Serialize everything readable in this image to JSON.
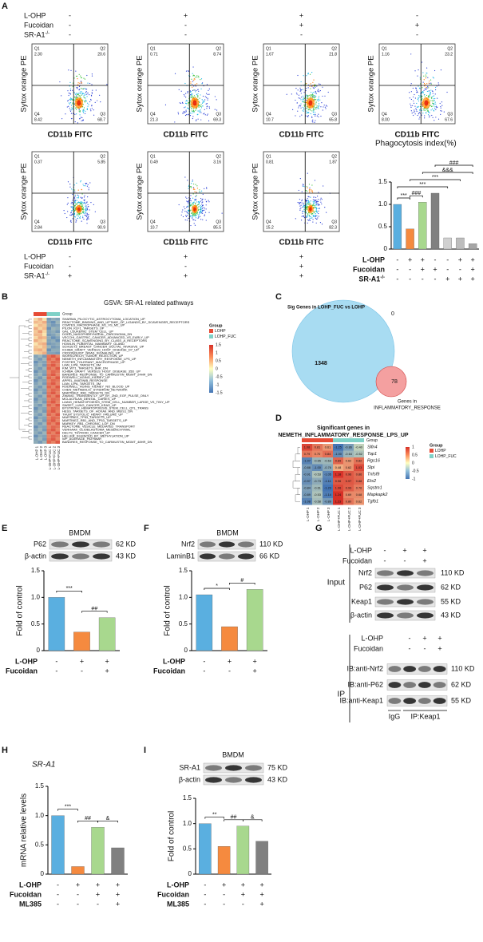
{
  "panel_labels": [
    "A",
    "B",
    "C",
    "D",
    "E",
    "F",
    "G",
    "H",
    "I"
  ],
  "flow": {
    "y_label": "Sytox orange PE",
    "x_label": "CD11b FITC",
    "quadrants": [
      "Q1",
      "Q2",
      "Q3",
      "Q4"
    ],
    "plots": [
      [
        "2.30",
        "20.6",
        "68.7",
        "8.42"
      ],
      [
        "0.71",
        "8.74",
        "69.3",
        "21.3"
      ],
      [
        "1.67",
        "21.8",
        "65.8",
        "10.7"
      ],
      [
        "1.16",
        "23.2",
        "67.6",
        "8.00"
      ],
      [
        "0.37",
        "5.85",
        "90.9",
        "2.84"
      ],
      [
        "0.49",
        "3.16",
        "85.5",
        "10.7"
      ],
      [
        "0.81",
        "1.87",
        "82.3",
        "15.2"
      ]
    ],
    "treatments_top": [
      {
        "label": "L-OHP",
        "signs": [
          "-",
          "+",
          "+",
          "-"
        ]
      },
      {
        "label": "Fucoidan",
        "signs": [
          "-",
          "-",
          "+",
          "+"
        ]
      },
      {
        "label": "SR-A1",
        "sup": "-/-",
        "signs": [
          "-",
          "-",
          "-",
          "-"
        ]
      }
    ],
    "treatments_bottom": [
      {
        "label": "L-OHP",
        "signs": [
          "-",
          "+",
          "+"
        ]
      },
      {
        "label": "Fucoidan",
        "signs": [
          "-",
          "-",
          "+"
        ]
      },
      {
        "label": "SR-A1",
        "sup": "-/-",
        "signs": [
          "+",
          "+",
          "+"
        ]
      }
    ]
  },
  "chart_data": [
    {
      "type": "bar",
      "title": "Phagocytosis index(%)",
      "categories": [
        null,
        null,
        null,
        null,
        null,
        null,
        null
      ],
      "values": [
        1.0,
        0.45,
        1.05,
        1.25,
        0.25,
        0.25,
        0.12
      ],
      "colors": [
        "#5aafe0",
        "#f58a3f",
        "#a8d88e",
        "#808080",
        "#d0d0d0",
        "#bdbdbd",
        "#a6a6a6"
      ],
      "ylim": [
        0,
        1.5
      ],
      "yticks": [
        0,
        0.5,
        {
          "value": 1,
          "label": "1.0"
        },
        1.5
      ],
      "significance": [
        {
          "label": "***",
          "pair": [
            0,
            1
          ]
        },
        {
          "label": "###",
          "pair": [
            1,
            2
          ]
        },
        {
          "label": "***",
          "pair": [
            0,
            4
          ]
        },
        {
          "label": "***",
          "pair": [
            1,
            5
          ]
        },
        {
          "label": "&&&",
          "pair": [
            2,
            6
          ]
        },
        {
          "label": "###",
          "pair": [
            3,
            6
          ]
        }
      ],
      "conditions": [
        {
          "label": "L-OHP",
          "signs": [
            "-",
            "+",
            "+",
            "-",
            "-",
            "+",
            "+"
          ]
        },
        {
          "label": "Fucoidan",
          "signs": [
            "-",
            "-",
            "+",
            "+",
            "-",
            "-",
            "+"
          ]
        },
        {
          "label": "SR-A1",
          "sup": "-/-",
          "signs": [
            "-",
            "-",
            "-",
            "-",
            "+",
            "+",
            "+"
          ]
        }
      ]
    },
    {
      "type": "bar",
      "y_label": "Fold of control",
      "categories": [
        null,
        null,
        null
      ],
      "values": [
        1.0,
        0.35,
        0.62
      ],
      "colors": [
        "#5aafe0",
        "#f58a3f",
        "#a8d88e"
      ],
      "ylim": [
        0,
        1.5
      ],
      "yticks": [
        0,
        0.5,
        {
          "value": 1,
          "label": "1.0"
        },
        1.5
      ],
      "significance": [
        {
          "label": "***",
          "pair": [
            0,
            1
          ]
        },
        {
          "label": "##",
          "pair": [
            1,
            2
          ]
        }
      ],
      "conditions": [
        {
          "label": "L-OHP",
          "signs": [
            "-",
            "+",
            "+"
          ]
        },
        {
          "label": "Fucoidan",
          "signs": [
            "-",
            "-",
            "+"
          ]
        }
      ]
    },
    {
      "type": "bar",
      "y_label": "Fold of control",
      "categories": [
        null,
        null,
        null
      ],
      "values": [
        1.05,
        0.45,
        1.15
      ],
      "colors": [
        "#5aafe0",
        "#f58a3f",
        "#a8d88e"
      ],
      "ylim": [
        0,
        1.5
      ],
      "yticks": [
        0,
        0.5,
        {
          "value": 1,
          "label": "1.0"
        },
        1.5
      ],
      "significance": [
        {
          "label": "*",
          "pair": [
            0,
            1
          ]
        },
        {
          "label": "#",
          "pair": [
            1,
            2
          ]
        }
      ],
      "conditions": [
        {
          "label": "L-OHP",
          "signs": [
            "-",
            "+",
            "+"
          ]
        },
        {
          "label": "Fucoidan",
          "signs": [
            "-",
            "-",
            "+"
          ]
        }
      ]
    },
    {
      "type": "bar",
      "title": "SR-A1",
      "y_label": "mRNA relative levels",
      "categories": [
        null,
        null,
        null,
        null
      ],
      "values": [
        1.0,
        0.13,
        0.8,
        0.45
      ],
      "colors": [
        "#5aafe0",
        "#f58a3f",
        "#a8d88e",
        "#808080"
      ],
      "ylim": [
        0,
        1.5
      ],
      "yticks": [
        0,
        0.5,
        {
          "value": 1,
          "label": "1.0"
        },
        1.5
      ],
      "significance": [
        {
          "label": "***",
          "pair": [
            0,
            1
          ]
        },
        {
          "label": "##",
          "pair": [
            1,
            2
          ]
        },
        {
          "label": "&",
          "pair": [
            2,
            3
          ]
        }
      ],
      "conditions": [
        {
          "label": "L-OHP",
          "signs": [
            "-",
            "+",
            "+",
            "+"
          ]
        },
        {
          "label": "Fucoidan",
          "signs": [
            "-",
            "-",
            "+",
            "+"
          ]
        },
        {
          "label": "ML385",
          "signs": [
            "-",
            "-",
            "-",
            "+"
          ]
        }
      ]
    },
    {
      "type": "bar",
      "y_label": "Fold of control",
      "categories": [
        null,
        null,
        null,
        null
      ],
      "values": [
        1.0,
        0.55,
        0.95,
        0.65
      ],
      "colors": [
        "#5aafe0",
        "#f58a3f",
        "#a8d88e",
        "#808080"
      ],
      "ylim": [
        0,
        1.5
      ],
      "yticks": [
        0,
        0.5,
        {
          "value": 1,
          "label": "1.0"
        },
        1.5
      ],
      "significance": [
        {
          "label": "**",
          "pair": [
            0,
            1
          ]
        },
        {
          "label": "##",
          "pair": [
            1,
            2
          ]
        },
        {
          "label": "&",
          "pair": [
            2,
            3
          ]
        }
      ],
      "conditions": [
        {
          "label": "L-OHP",
          "signs": [
            "-",
            "+",
            "+",
            "+"
          ]
        },
        {
          "label": "Fucoidan",
          "signs": [
            "-",
            "-",
            "+",
            "+"
          ]
        },
        {
          "label": "ML385",
          "signs": [
            "-",
            "-",
            "-",
            "+"
          ]
        }
      ]
    }
  ],
  "blots": {
    "E": {
      "title": "BMDM",
      "rows": [
        {
          "label": "P62",
          "size": "62 KD"
        },
        {
          "label": "β-actin",
          "size": "43 KD"
        }
      ]
    },
    "F": {
      "title": "BMDM",
      "rows": [
        {
          "label": "Nrf2",
          "size": "110 KD"
        },
        {
          "label": "LaminB1",
          "size": "66 KD"
        }
      ]
    },
    "I": {
      "title": "BMDM",
      "rows": [
        {
          "label": "SR-A1",
          "size": "75 KD"
        },
        {
          "label": "β-actin",
          "size": "43 KD"
        }
      ]
    },
    "G_input": {
      "title": "Input",
      "header": [
        {
          "label": "L-OHP",
          "signs": [
            "-",
            "+",
            "+"
          ]
        },
        {
          "label": "Fucoidan",
          "signs": [
            "-",
            "-",
            "+"
          ]
        }
      ],
      "rows": [
        {
          "label": "Nrf2",
          "size": "110 KD"
        },
        {
          "label": "P62",
          "size": "62 KD"
        },
        {
          "label": "Keap1",
          "size": "55 KD"
        },
        {
          "label": "β-actin",
          "size": "43 KD"
        }
      ]
    },
    "G_ip": {
      "title": "IP",
      "header": [
        {
          "label": "L-OHP",
          "signs": [
            "-",
            "+",
            "+"
          ]
        },
        {
          "label": "Fucoidan",
          "signs": [
            "-",
            "-",
            "+"
          ]
        }
      ],
      "rows": [
        {
          "label": "IB:anti-Nrf2",
          "size": "110 KD"
        },
        {
          "label": "IB:anti-P62",
          "size": "62 KD"
        },
        {
          "label": "IB:anti-Keap1",
          "size": "55 KD"
        }
      ],
      "lanes": [
        "IgG",
        "IP:Keap1"
      ]
    }
  },
  "gsva": {
    "title": "GSVA: SR-A1 related pathways",
    "group_label": "Group",
    "groups": [
      "LOHP",
      "LOHP_FUC"
    ],
    "group_colors": [
      "#e64b35",
      "#7fd1c7"
    ],
    "scale": [
      1.5,
      1,
      0.5,
      0,
      -0.5,
      -1,
      -1.5
    ],
    "columns": [
      "L-OHP 1",
      "L-OHP 2",
      "L-OHP 3",
      "L-OHP+FUC 1",
      "L-OHP+FUC 2",
      "L-OHP+FUC 3"
    ],
    "highlight": 13,
    "pathways": [
      "SHARMA_PILOCYTIC_ASTROCYTOMA_LOCATION_UP",
      "REACTOME_BINDING_AND_UPTAKE_OF_LIGANDS_BY_SCAVENGER_RECEPTORS",
      "COATES_MACROPHAGE_M1_VS_M2_UP",
      "PILON_KLF1_TARGETS_UP",
      "GAL_LEUKEMIC_STEM_CELL_UP",
      "DODD_NASOPHARYNGEAL_CARCINOMA_DN",
      "VECCHI_GASTRIC_CANCER_ADVANCED_VS_EARLY_UP",
      "REACTOME_SCAVENGING_BY_CLASS_A_RECEPTORS",
      "HOWLIN_PUBERTAL_MAMMARY_GLAND",
      "SCHUETZ_BREAST_CANCER_DUCTAL_INVASIVE_UP",
      "ICHIBA_GRAFT_VERSUS_HOST_DISEASE_D7_UP",
      "CROONQUIST_NRAS_SIGNALING_UP",
      "WORSCHECH_TUMOR_REJECTION_UP",
      "NEMETH_INFLAMMATORY_RESPONSE_LPS_UP",
      "FOSTER_TOLERANT_MACROPHAGE_UP",
      "LIAN_LIPA_TARGETS_6M",
      "KIM_WT1_TARGETS_8HR_DN",
      "ICHIBA_GRAFT_VERSUS_HOST_DISEASE_35D_UP",
      "BANDRES_RESPONSE_TO_CARMUSTIN_MGMT_24HR_DN",
      "RODWELL_AGING_KIDNEY_UP",
      "APPEL_IMATINIB_RESPONSE",
      "LIAN_LIPA_TARGETS_3M",
      "RODWELL_AGING_KIDNEY_NO_BLOOD_UP",
      "CHEN_METABOLIC_SYNDROM_NETWORK",
      "MARTINEZ_RB1_TARGETS_DN",
      "ZWANG_TRANSIENTLY_UP_BY_2ND_EGF_PULSE_ONLY",
      "MCLACHLAN_DENTAL_CARIES_UP",
      "LIANG_HEMATOPOIESIS_STEM_CELL_NUMBER_LARGE_VS_TINY_UP",
      "SWEET_LUNG_CANCER_KRAS_UP",
      "BYSTRYKH_HEMATOPOIESIS_STEM_CELL_QTL_TRANS",
      "HESS_TARGETS_OF_HOXA9_AND_MEIS1_DN",
      "THUM_SYSTOLIC_HEART_FAILURE_UP",
      "MARTINEZ_TP53_TARGETS_UP",
      "MARTINEZ_RB1_AND_TP53_TARGETS_UP",
      "MARKEY_RB1_CHRONIC_LOF_DN",
      "REACTOME_VESICLE_MEDIATED_TRANSPORT",
      "VERHAAK_GLIOBLASTOMA_MESENCHYMAL",
      "DELYS_THYROID_CANCER_UP",
      "HELLER_SILENCED_BY_METHYLATION_UP",
      "WP_AGERAGE_PATHWAY",
      "BANDRES_RESPONSE_TO_CARMUSTIN_MGMT_48HR_DN"
    ],
    "values": [
      [
        0.3,
        0.6,
        0.2,
        -1.1,
        -0.9,
        -1.0
      ],
      [
        0.5,
        0.4,
        0.6,
        -1.0,
        -1.2,
        -0.8
      ],
      [
        0.2,
        0.5,
        0.4,
        -0.9,
        -1.1,
        -1.0
      ],
      [
        0.6,
        0.3,
        0.5,
        -1.2,
        -0.8,
        -0.9
      ],
      [
        0.4,
        0.7,
        0.3,
        -1.0,
        -0.9,
        -1.1
      ],
      [
        0.5,
        0.5,
        0.2,
        -1.1,
        -1.0,
        -0.8
      ],
      [
        0.3,
        0.6,
        0.5,
        -0.9,
        -1.2,
        -1.0
      ],
      [
        0.6,
        0.4,
        0.3,
        -1.0,
        -0.9,
        -1.2
      ],
      [
        0.2,
        0.5,
        0.6,
        -1.1,
        -1.0,
        -0.9
      ],
      [
        0.4,
        0.3,
        0.5,
        -0.8,
        -1.1,
        -1.0
      ],
      [
        0.5,
        0.6,
        0.4,
        -1.2,
        -0.9,
        -0.9
      ],
      [
        0.3,
        0.4,
        0.6,
        -1.0,
        -1.0,
        -1.1
      ],
      [
        -1.0,
        -0.8,
        -1.1,
        1.0,
        1.2,
        0.9
      ],
      [
        -0.9,
        -1.1,
        -0.8,
        1.1,
        0.9,
        1.2
      ],
      [
        -1.2,
        -0.9,
        -1.0,
        0.9,
        1.1,
        1.0
      ],
      [
        -1.0,
        -0.8,
        -1.1,
        1.0,
        1.2,
        0.9
      ],
      [
        -0.9,
        -1.1,
        -0.8,
        1.1,
        0.9,
        1.2
      ],
      [
        -1.2,
        -0.9,
        -1.0,
        0.9,
        1.1,
        1.0
      ],
      [
        -1.0,
        -0.8,
        -1.1,
        1.0,
        1.2,
        0.9
      ],
      [
        -0.9,
        -1.1,
        -0.8,
        1.1,
        0.9,
        1.2
      ],
      [
        -1.2,
        -0.9,
        -1.0,
        0.9,
        1.1,
        1.0
      ],
      [
        -1.0,
        -0.8,
        -1.1,
        1.0,
        1.2,
        0.9
      ],
      [
        -0.9,
        -1.1,
        -0.8,
        1.1,
        0.9,
        1.2
      ],
      [
        -1.2,
        -0.9,
        -1.0,
        0.9,
        1.1,
        1.0
      ],
      [
        -1.0,
        -0.8,
        -1.1,
        1.0,
        1.2,
        0.9
      ],
      [
        -0.9,
        -1.1,
        -0.8,
        1.1,
        0.9,
        1.2
      ],
      [
        -1.2,
        -0.9,
        -1.0,
        0.9,
        1.1,
        1.0
      ],
      [
        -1.0,
        -0.8,
        -1.1,
        1.0,
        1.2,
        0.9
      ],
      [
        -0.9,
        -1.1,
        -0.8,
        1.1,
        0.9,
        1.2
      ],
      [
        -1.2,
        -0.9,
        -1.0,
        0.9,
        1.1,
        1.0
      ],
      [
        -1.0,
        -0.8,
        -1.1,
        1.0,
        1.2,
        0.9
      ],
      [
        -0.9,
        -1.1,
        -0.8,
        1.1,
        0.9,
        1.2
      ],
      [
        -1.2,
        -0.9,
        -1.0,
        0.9,
        1.1,
        1.0
      ],
      [
        -1.0,
        -0.8,
        -1.1,
        1.0,
        1.2,
        0.9
      ],
      [
        -0.9,
        -1.1,
        -0.8,
        1.1,
        0.9,
        1.2
      ],
      [
        -1.2,
        -0.9,
        -1.0,
        0.9,
        1.1,
        1.0
      ],
      [
        -1.0,
        -0.8,
        -1.1,
        1.0,
        1.2,
        0.9
      ],
      [
        -0.9,
        -1.1,
        -0.8,
        1.1,
        0.9,
        1.2
      ],
      [
        -1.2,
        -0.9,
        -1.0,
        0.9,
        1.1,
        1.0
      ],
      [
        -1.0,
        -0.8,
        -1.1,
        1.0,
        1.2,
        0.9
      ],
      [
        -0.9,
        -1.1,
        -0.8,
        1.1,
        0.9,
        1.2
      ]
    ]
  },
  "venn": {
    "title": "Sig Genes in LOHP_FUC vs LOHP",
    "left_only": 1348,
    "overlap": 0,
    "right_only": 78,
    "right_label": [
      "Genes in",
      "INFLAMMATORY_RESPONSE"
    ]
  },
  "deg": {
    "title": [
      "Significant genes in",
      "NEMETH_INFLAMMATORY_RESPONSE_LPS_UP"
    ],
    "group_label": "Group",
    "groups": [
      "LOHP",
      "LOHP_FUC"
    ],
    "group_colors": [
      "#e64b35",
      "#7fd1c7"
    ],
    "scale": [
      1,
      0.5,
      0,
      -0.5,
      -1
    ],
    "columns": [
      "L-OHP 1",
      "L-OHP 2",
      "L-OHP 3",
      "L-OHP+FUC 1",
      "L-OHP+FUC 2",
      "L-OHP+FUC 3"
    ],
    "genes": [
      "Slfn4",
      "Top1",
      "Rgs16",
      "Slpi",
      "Tnfsf9",
      "Ets2",
      "Sqstm1",
      "Mapkapk2",
      "Tgfb1"
    ],
    "highlight": 6,
    "cells": [
      [
        "1.08",
        "0.81",
        "0.61",
        "-1.25",
        "-0.86",
        "-0.40"
      ],
      [
        "0.79",
        "0.70",
        "0.84",
        "-1.00",
        "-0.64",
        "-0.52"
      ],
      [
        "-1.07",
        "-0.65",
        "-0.63",
        "0.89",
        "0.62",
        "0.82"
      ],
      [
        "-0.88",
        "-1.00",
        "-0.76",
        "0.48",
        "0.62",
        "1.03"
      ],
      [
        "-0.91",
        "-0.53",
        "-1.05",
        "1.18",
        "0.96",
        "0.86"
      ],
      [
        "-0.97",
        "-0.73",
        "-1.11",
        "0.96",
        "0.97",
        "0.88"
      ],
      [
        "-0.84",
        "-0.61",
        "-1.23",
        "1.06",
        "0.93",
        "0.76"
      ],
      [
        "-0.89",
        "-0.53",
        "-1.14",
        "1.24",
        "0.69",
        "0.68"
      ],
      [
        "-1.08",
        "-0.58",
        "-0.89",
        "1.23",
        "0.80",
        "0.62"
      ]
    ]
  }
}
